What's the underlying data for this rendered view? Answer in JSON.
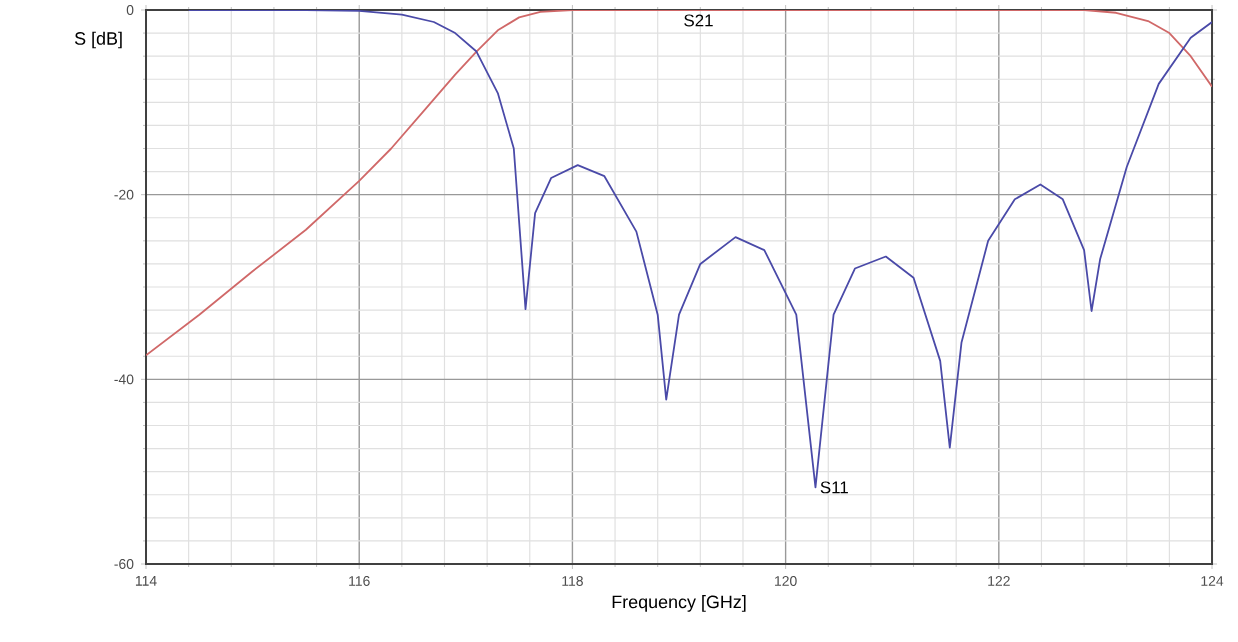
{
  "chart_data": {
    "type": "line",
    "xlabel": "Frequency [GHz]",
    "ylabel": "S [dB]",
    "xlim": [
      114,
      124
    ],
    "xticks": [
      114,
      116,
      118,
      120,
      122,
      124
    ],
    "ylim": [
      -60,
      0
    ],
    "yticks": [
      -60,
      -40,
      -20,
      0
    ],
    "grid": true,
    "legend": false,
    "marker": "none",
    "line_style": "solid",
    "series": [
      {
        "name": "S21",
        "color": "#d06868",
        "x": [
          114,
          114.5,
          115,
          115.5,
          116,
          116.3,
          116.6,
          116.9,
          117.1,
          117.3,
          117.5,
          117.7,
          118,
          119,
          120,
          121,
          122,
          122.8,
          123.1,
          123.4,
          123.6,
          123.8,
          124
        ],
        "values": [
          -37.4,
          -33,
          -28.3,
          -23.8,
          -18.5,
          -15,
          -11,
          -7,
          -4.5,
          -2.2,
          -0.8,
          -0.2,
          0,
          0,
          0,
          0,
          0,
          0,
          -0.3,
          -1.2,
          -2.5,
          -5,
          -8.3
        ]
      },
      {
        "name": "S11",
        "color": "#4a4aa8",
        "x": [
          114.4,
          115.5,
          116,
          116.4,
          116.7,
          116.9,
          117.1,
          117.3,
          117.45,
          117.56,
          117.65,
          117.8,
          118.05,
          118.3,
          118.6,
          118.8,
          118.88,
          119.0,
          119.2,
          119.53,
          119.8,
          120.1,
          120.28,
          120.45,
          120.65,
          120.94,
          121.2,
          121.45,
          121.54,
          121.65,
          121.9,
          122.15,
          122.39,
          122.6,
          122.8,
          122.87,
          122.95,
          123.2,
          123.5,
          123.8,
          124
        ],
        "values": [
          0,
          0,
          -0.1,
          -0.5,
          -1.3,
          -2.5,
          -4.5,
          -9,
          -15,
          -32.4,
          -22,
          -18.2,
          -16.8,
          -18,
          -24,
          -33,
          -42.2,
          -33,
          -27.5,
          -24.6,
          -26,
          -33,
          -51.7,
          -33,
          -28,
          -26.7,
          -29,
          -38,
          -47.4,
          -36,
          -25,
          -20.5,
          -18.9,
          -20.5,
          -26,
          -32.6,
          -27,
          -17,
          -8,
          -3,
          -1.3
        ]
      }
    ]
  }
}
